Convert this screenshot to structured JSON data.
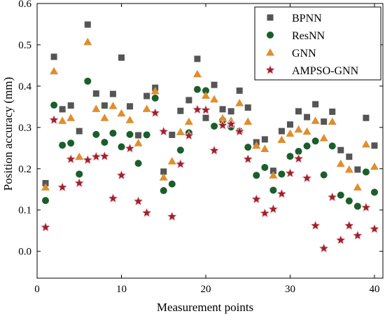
{
  "chart_data": {
    "type": "scatter",
    "xlabel": "Measurement points",
    "ylabel": "Position accuracy (mm)",
    "xlim": [
      0,
      41
    ],
    "ylim": [
      -0.065,
      0.6
    ],
    "x_ticks": [
      0,
      10,
      20,
      30,
      40
    ],
    "y_ticks": [
      0.0,
      0.1,
      0.2,
      0.3,
      0.4,
      0.5,
      0.6
    ],
    "y_tick_labels": [
      "0.0",
      "0.1",
      "0.2",
      "0.3",
      "0.4",
      "0.5",
      "0.6"
    ],
    "grid": false,
    "legend_position": "top-right",
    "series": [
      {
        "name": "BPNN",
        "marker": "square",
        "color": "#555555",
        "x": [
          1,
          2,
          3,
          4,
          5,
          6,
          7,
          8,
          9,
          10,
          11,
          12,
          13,
          14,
          15,
          16,
          17,
          18,
          19,
          20,
          21,
          22,
          23,
          24,
          25,
          26,
          27,
          28,
          29,
          30,
          31,
          32,
          33,
          34,
          35,
          36,
          37,
          38,
          39,
          40
        ],
        "y": [
          0.165,
          0.471,
          0.344,
          0.353,
          0.291,
          0.549,
          0.382,
          0.353,
          0.381,
          0.469,
          0.351,
          0.281,
          0.376,
          0.396,
          0.193,
          0.282,
          0.34,
          0.366,
          0.466,
          0.323,
          0.403,
          0.344,
          0.339,
          0.389,
          0.348,
          0.264,
          0.271,
          0.195,
          0.291,
          0.307,
          0.339,
          0.325,
          0.356,
          0.314,
          0.338,
          0.245,
          0.229,
          0.198,
          0.323,
          0.256
        ]
      },
      {
        "name": "ResNN",
        "marker": "circle",
        "color": "#1a5e2a",
        "x": [
          1,
          2,
          3,
          4,
          5,
          6,
          7,
          8,
          9,
          10,
          11,
          12,
          13,
          14,
          15,
          16,
          17,
          18,
          19,
          20,
          21,
          22,
          23,
          24,
          25,
          26,
          27,
          28,
          29,
          30,
          31,
          32,
          33,
          34,
          35,
          36,
          37,
          38,
          39,
          40
        ],
        "y": [
          0.123,
          0.354,
          0.257,
          0.262,
          0.187,
          0.412,
          0.283,
          0.264,
          0.286,
          0.253,
          0.283,
          0.213,
          0.282,
          0.371,
          0.147,
          0.163,
          0.245,
          0.287,
          0.392,
          0.389,
          0.303,
          0.317,
          0.301,
          0.291,
          0.252,
          0.184,
          0.203,
          0.148,
          0.187,
          0.23,
          0.242,
          0.255,
          0.267,
          0.185,
          0.255,
          0.136,
          0.122,
          0.109,
          0.192,
          0.143
        ]
      },
      {
        "name": "GNN",
        "marker": "triangle",
        "color": "#e08e2c",
        "x": [
          1,
          2,
          3,
          4,
          5,
          6,
          7,
          8,
          9,
          10,
          11,
          12,
          13,
          14,
          15,
          16,
          17,
          18,
          19,
          20,
          21,
          22,
          23,
          24,
          25,
          26,
          27,
          28,
          29,
          30,
          31,
          32,
          33,
          34,
          35,
          36,
          37,
          38,
          39,
          40
        ],
        "y": [
          0.155,
          0.436,
          0.316,
          0.323,
          0.229,
          0.507,
          0.345,
          0.323,
          0.352,
          0.334,
          0.318,
          0.262,
          0.345,
          0.388,
          0.179,
          0.218,
          0.289,
          0.314,
          0.429,
          0.377,
          0.368,
          0.322,
          0.316,
          0.359,
          0.314,
          0.256,
          0.248,
          0.184,
          0.27,
          0.285,
          0.295,
          0.29,
          0.316,
          0.274,
          0.314,
          0.212,
          0.198,
          0.155,
          0.259,
          0.205
        ]
      },
      {
        "name": "AMPSO-GNN",
        "marker": "star",
        "color": "#9c2420",
        "x": [
          1,
          2,
          3,
          4,
          5,
          6,
          7,
          8,
          9,
          10,
          11,
          12,
          13,
          14,
          15,
          16,
          17,
          18,
          19,
          20,
          21,
          22,
          23,
          24,
          25,
          26,
          27,
          28,
          29,
          30,
          31,
          32,
          33,
          34,
          35,
          36,
          37,
          38,
          39,
          40
        ],
        "y": [
          0.058,
          0.318,
          0.155,
          0.223,
          0.165,
          0.221,
          0.229,
          0.23,
          0.128,
          0.184,
          0.249,
          0.121,
          0.093,
          0.335,
          0.29,
          0.084,
          0.211,
          0.28,
          0.343,
          0.342,
          0.244,
          0.305,
          0.308,
          0.29,
          0.223,
          0.126,
          0.092,
          0.102,
          0.139,
          0.189,
          0.224,
          0.177,
          0.062,
          0.007,
          0.131,
          0.027,
          0.062,
          0.038,
          0.106,
          0.054
        ]
      }
    ]
  }
}
